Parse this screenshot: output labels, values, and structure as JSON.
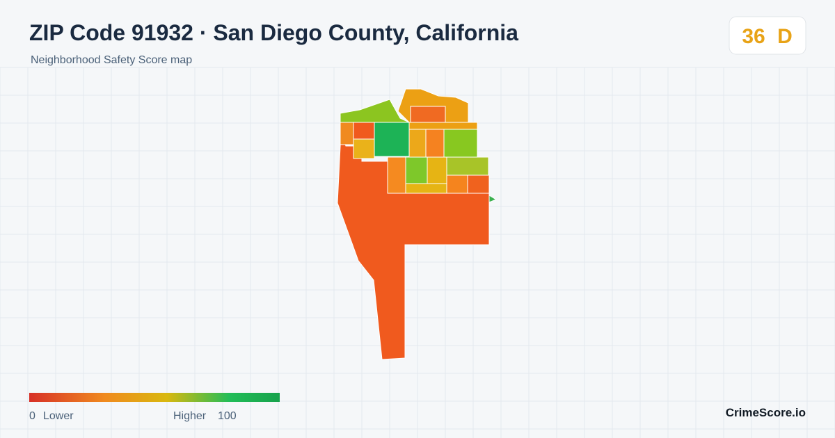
{
  "header": {
    "title": "ZIP Code 91932 · San Diego County, California",
    "subtitle": "Neighborhood Safety Score map"
  },
  "score": {
    "value": "36",
    "grade": "D"
  },
  "legend": {
    "min": "0",
    "min_label": "Lower",
    "max_label": "Higher",
    "max": "100"
  },
  "brand": "CrimeScore.io"
}
